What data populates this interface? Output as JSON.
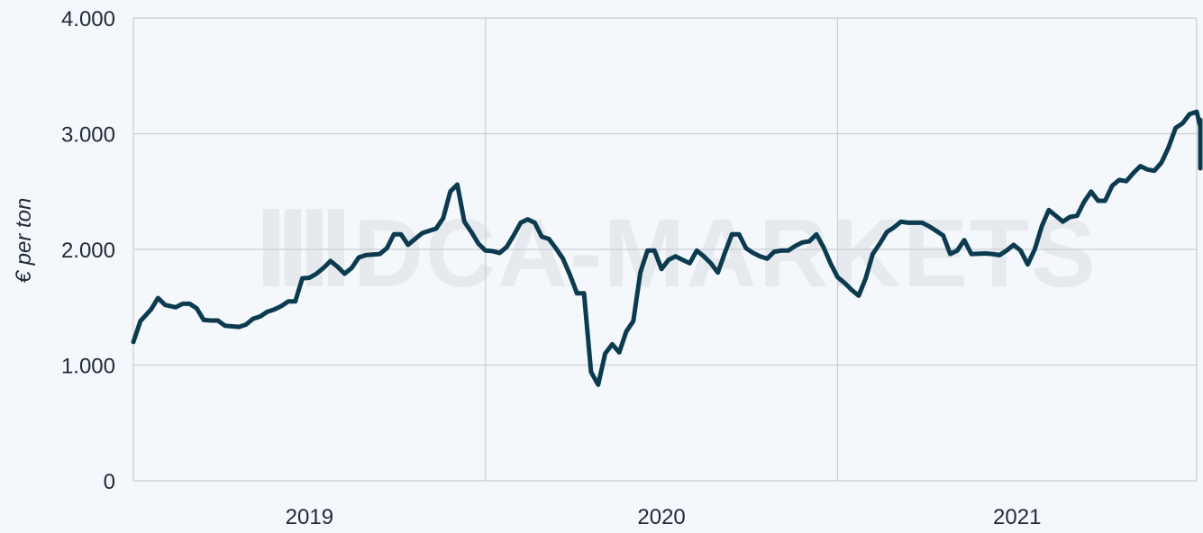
{
  "watermark": "DCA-MARKETS",
  "colors": {
    "background": "#f4f8fc",
    "grid": "#c9cfd5",
    "line": "#0c3b4f",
    "watermark": "#e6eaee"
  },
  "chart_data": {
    "type": "line",
    "title": "",
    "xlabel": "",
    "ylabel": "€ per ton",
    "ylim": [
      0,
      4000
    ],
    "yticks": [
      0,
      1000,
      2000,
      3000,
      4000
    ],
    "ytick_labels": [
      "0",
      "1.000",
      "2.000",
      "3.000",
      "4.000"
    ],
    "xlim": [
      2018.96,
      2021.98
    ],
    "x_categories": [
      {
        "label": "2019",
        "start": 2018.96,
        "end": 2019.96
      },
      {
        "label": "2020",
        "start": 2019.96,
        "end": 2020.96
      },
      {
        "label": "2021",
        "start": 2020.96,
        "end": 2021.98
      }
    ],
    "grid": true,
    "legend": "none",
    "series": [
      {
        "points": [
          [
            2018.96,
            1200
          ],
          [
            2018.98,
            1380
          ],
          [
            2019.01,
            1480
          ],
          [
            2019.03,
            1580
          ],
          [
            2019.05,
            1520
          ],
          [
            2019.08,
            1500
          ],
          [
            2019.1,
            1530
          ],
          [
            2019.12,
            1530
          ],
          [
            2019.14,
            1490
          ],
          [
            2019.16,
            1390
          ],
          [
            2019.18,
            1385
          ],
          [
            2019.2,
            1385
          ],
          [
            2019.22,
            1340
          ],
          [
            2019.26,
            1330
          ],
          [
            2019.28,
            1350
          ],
          [
            2019.3,
            1400
          ],
          [
            2019.32,
            1420
          ],
          [
            2019.34,
            1460
          ],
          [
            2019.36,
            1480
          ],
          [
            2019.38,
            1510
          ],
          [
            2019.4,
            1550
          ],
          [
            2019.42,
            1550
          ],
          [
            2019.44,
            1750
          ],
          [
            2019.46,
            1755
          ],
          [
            2019.48,
            1790
          ],
          [
            2019.5,
            1840
          ],
          [
            2019.52,
            1900
          ],
          [
            2019.54,
            1850
          ],
          [
            2019.56,
            1790
          ],
          [
            2019.58,
            1840
          ],
          [
            2019.6,
            1930
          ],
          [
            2019.62,
            1950
          ],
          [
            2019.66,
            1960
          ],
          [
            2019.68,
            2010
          ],
          [
            2019.7,
            2130
          ],
          [
            2019.72,
            2130
          ],
          [
            2019.74,
            2040
          ],
          [
            2019.76,
            2090
          ],
          [
            2019.78,
            2140
          ],
          [
            2019.8,
            2160
          ],
          [
            2019.82,
            2180
          ],
          [
            2019.84,
            2270
          ],
          [
            2019.86,
            2500
          ],
          [
            2019.88,
            2560
          ],
          [
            2019.9,
            2240
          ],
          [
            2019.92,
            2150
          ],
          [
            2019.94,
            2050
          ],
          [
            2019.96,
            1990
          ],
          [
            2019.98,
            1985
          ],
          [
            2020.0,
            1970
          ],
          [
            2020.02,
            2020
          ],
          [
            2020.04,
            2120
          ],
          [
            2020.06,
            2230
          ],
          [
            2020.08,
            2260
          ],
          [
            2020.1,
            2230
          ],
          [
            2020.12,
            2110
          ],
          [
            2020.14,
            2090
          ],
          [
            2020.16,
            2010
          ],
          [
            2020.18,
            1920
          ],
          [
            2020.2,
            1780
          ],
          [
            2020.22,
            1620
          ],
          [
            2020.24,
            1620
          ],
          [
            2020.26,
            940
          ],
          [
            2020.28,
            830
          ],
          [
            2020.3,
            1100
          ],
          [
            2020.32,
            1180
          ],
          [
            2020.34,
            1110
          ],
          [
            2020.36,
            1290
          ],
          [
            2020.38,
            1380
          ],
          [
            2020.4,
            1800
          ],
          [
            2020.42,
            1990
          ],
          [
            2020.44,
            1990
          ],
          [
            2020.46,
            1830
          ],
          [
            2020.48,
            1910
          ],
          [
            2020.5,
            1940
          ],
          [
            2020.52,
            1910
          ],
          [
            2020.54,
            1880
          ],
          [
            2020.56,
            1990
          ],
          [
            2020.58,
            1940
          ],
          [
            2020.6,
            1880
          ],
          [
            2020.62,
            1800
          ],
          [
            2020.64,
            1970
          ],
          [
            2020.66,
            2130
          ],
          [
            2020.68,
            2130
          ],
          [
            2020.7,
            2010
          ],
          [
            2020.72,
            1970
          ],
          [
            2020.74,
            1940
          ],
          [
            2020.76,
            1920
          ],
          [
            2020.78,
            1980
          ],
          [
            2020.8,
            1990
          ],
          [
            2020.82,
            1990
          ],
          [
            2020.84,
            2030
          ],
          [
            2020.86,
            2060
          ],
          [
            2020.88,
            2070
          ],
          [
            2020.9,
            2130
          ],
          [
            2020.92,
            2020
          ],
          [
            2020.94,
            1880
          ],
          [
            2020.96,
            1760
          ],
          [
            2020.98,
            1710
          ],
          [
            2021.0,
            1650
          ],
          [
            2021.02,
            1600
          ],
          [
            2021.04,
            1750
          ],
          [
            2021.06,
            1960
          ],
          [
            2021.08,
            2050
          ],
          [
            2021.1,
            2150
          ],
          [
            2021.12,
            2190
          ],
          [
            2021.14,
            2240
          ],
          [
            2021.16,
            2230
          ],
          [
            2021.18,
            2230
          ],
          [
            2021.2,
            2230
          ],
          [
            2021.22,
            2200
          ],
          [
            2021.24,
            2160
          ],
          [
            2021.26,
            2120
          ],
          [
            2021.28,
            1960
          ],
          [
            2021.3,
            1990
          ],
          [
            2021.32,
            2080
          ],
          [
            2021.34,
            1960
          ],
          [
            2021.38,
            1965
          ],
          [
            2021.4,
            1960
          ],
          [
            2021.42,
            1950
          ],
          [
            2021.44,
            1990
          ],
          [
            2021.46,
            2040
          ],
          [
            2021.48,
            1990
          ],
          [
            2021.5,
            1870
          ],
          [
            2021.52,
            2000
          ],
          [
            2021.54,
            2200
          ],
          [
            2021.56,
            2340
          ],
          [
            2021.58,
            2290
          ],
          [
            2021.6,
            2240
          ],
          [
            2021.62,
            2280
          ],
          [
            2021.64,
            2290
          ],
          [
            2021.66,
            2410
          ],
          [
            2021.68,
            2500
          ],
          [
            2021.7,
            2420
          ],
          [
            2021.72,
            2420
          ],
          [
            2021.74,
            2550
          ],
          [
            2021.76,
            2600
          ],
          [
            2021.78,
            2590
          ],
          [
            2021.8,
            2660
          ],
          [
            2021.82,
            2720
          ],
          [
            2021.84,
            2690
          ],
          [
            2021.86,
            2680
          ],
          [
            2021.88,
            2750
          ],
          [
            2021.9,
            2880
          ],
          [
            2021.92,
            3050
          ],
          [
            2021.94,
            3090
          ],
          [
            2021.96,
            3170
          ],
          [
            2021.98,
            3190
          ],
          [
            2022.0,
            3060
          ],
          [
            2022.02,
            3120
          ],
          [
            2022.04,
            3030
          ],
          [
            2022.06,
            2700
          ],
          [
            2022.08,
            3030
          ]
        ]
      }
    ]
  }
}
